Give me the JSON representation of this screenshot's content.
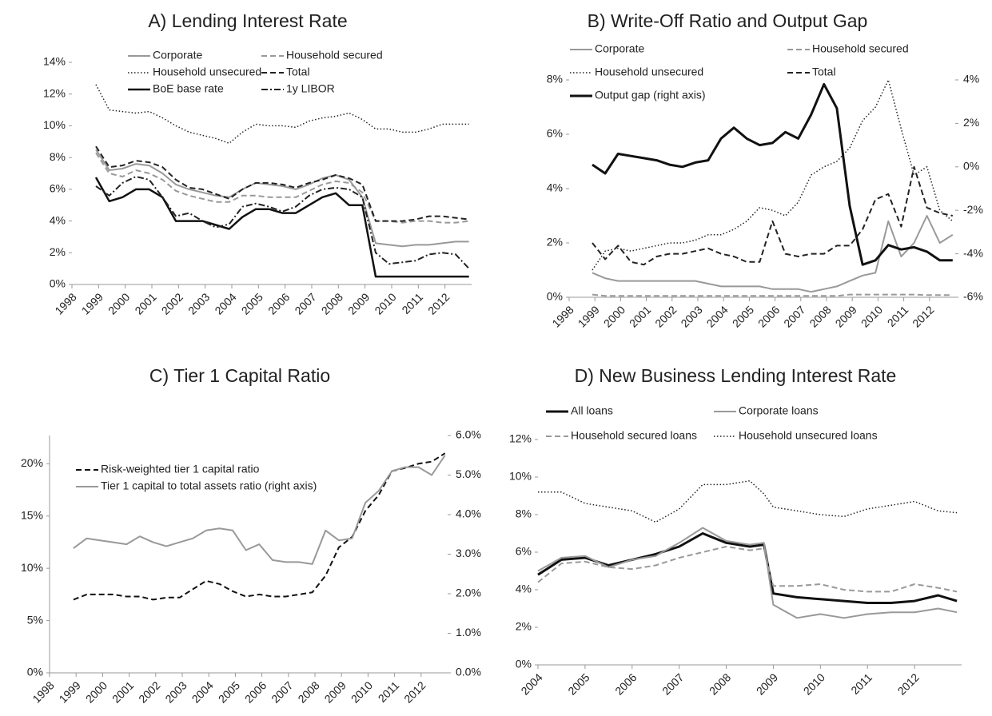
{
  "chart_data": [
    {
      "type": "line",
      "title": "A) Lending Interest Rate",
      "x": [
        1998.9,
        1999.4,
        1999.9,
        2000.4,
        2000.9,
        2001.4,
        2001.9,
        2002.4,
        2002.9,
        2003.4,
        2003.9,
        2004.4,
        2004.9,
        2005.4,
        2005.9,
        2006.4,
        2006.9,
        2007.4,
        2007.9,
        2008.4,
        2008.9,
        2009.4,
        2009.9,
        2010.4,
        2010.9,
        2011.4,
        2011.9,
        2012.4,
        2012.9
      ],
      "xlim": [
        1998,
        2013
      ],
      "xticks": [
        1998,
        1999,
        2000,
        2001,
        2002,
        2003,
        2004,
        2005,
        2006,
        2007,
        2008,
        2009,
        2010,
        2011,
        2012
      ],
      "ylim": [
        0,
        14
      ],
      "yticks": [
        {
          "value": 0,
          "label": "0%"
        },
        {
          "value": 2,
          "label": "2%"
        },
        {
          "value": 4,
          "label": "4%"
        },
        {
          "value": 6,
          "label": "6%"
        },
        {
          "value": 8,
          "label": "8%"
        },
        {
          "value": 10,
          "label": "10%"
        },
        {
          "value": 12,
          "label": "12%"
        },
        {
          "value": 14,
          "label": "14%"
        }
      ],
      "series": [
        {
          "name": "Corporate",
          "color": "#999999",
          "dash": "solid",
          "line_width": 2,
          "values": [
            8.5,
            7.2,
            7.3,
            7.6,
            7.5,
            7.0,
            6.3,
            6.0,
            5.8,
            5.6,
            5.5,
            6.0,
            6.4,
            6.3,
            6.2,
            6.0,
            6.3,
            6.7,
            6.9,
            6.6,
            5.5,
            2.6,
            2.5,
            2.4,
            2.5,
            2.5,
            2.6,
            2.7,
            2.7
          ]
        },
        {
          "name": "Household secured",
          "color": "#999999",
          "dash": "dashed",
          "line_width": 2,
          "values": [
            8.3,
            7.0,
            6.8,
            7.2,
            7.0,
            6.6,
            5.9,
            5.6,
            5.4,
            5.2,
            5.2,
            5.6,
            5.6,
            5.5,
            5.5,
            5.5,
            5.9,
            6.3,
            6.5,
            6.4,
            5.8,
            4.0,
            4.0,
            3.9,
            4.0,
            4.0,
            3.9,
            3.9,
            4.0
          ]
        },
        {
          "name": "Household unsecured",
          "color": "#222222",
          "dash": "dotted",
          "line_width": 1.5,
          "values": [
            12.6,
            11.0,
            10.9,
            10.8,
            10.9,
            10.5,
            10.0,
            9.6,
            9.4,
            9.2,
            8.9,
            9.6,
            10.1,
            10.0,
            10.0,
            9.9,
            10.3,
            10.5,
            10.6,
            10.8,
            10.4,
            9.8,
            9.8,
            9.6,
            9.6,
            9.8,
            10.1,
            10.1,
            10.1
          ]
        },
        {
          "name": "Total",
          "color": "#222222",
          "dash": "dashed",
          "line_width": 2,
          "values": [
            8.7,
            7.4,
            7.5,
            7.8,
            7.7,
            7.4,
            6.6,
            6.1,
            6.0,
            5.7,
            5.4,
            6.0,
            6.4,
            6.4,
            6.3,
            6.1,
            6.4,
            6.6,
            6.9,
            6.7,
            6.3,
            4.0,
            4.0,
            4.0,
            4.1,
            4.3,
            4.3,
            4.2,
            4.1
          ]
        },
        {
          "name": "BoE base rate",
          "color": "#111111",
          "dash": "solid",
          "line_width": 2.5,
          "values": [
            6.75,
            5.25,
            5.5,
            6.0,
            6.0,
            5.5,
            4.0,
            4.0,
            4.0,
            3.75,
            3.5,
            4.25,
            4.75,
            4.75,
            4.5,
            4.5,
            5.0,
            5.5,
            5.75,
            5.0,
            5.0,
            0.5,
            0.5,
            0.5,
            0.5,
            0.5,
            0.5,
            0.5,
            0.5
          ]
        },
        {
          "name": "1y LIBOR",
          "color": "#222222",
          "dash": "dashdot",
          "line_width": 2,
          "values": [
            6.2,
            5.6,
            6.4,
            6.8,
            6.6,
            5.5,
            4.3,
            4.5,
            4.0,
            3.6,
            3.8,
            4.9,
            5.1,
            4.9,
            4.6,
            4.9,
            5.6,
            6.0,
            6.1,
            6.0,
            5.5,
            2.0,
            1.3,
            1.4,
            1.5,
            1.9,
            2.0,
            1.9,
            1.0
          ]
        }
      ]
    },
    {
      "type": "line",
      "title": "B) Write-Off Ratio and Output Gap",
      "x": [
        1998.9,
        1999.4,
        1999.9,
        2000.4,
        2000.9,
        2001.4,
        2001.9,
        2002.4,
        2002.9,
        2003.4,
        2003.9,
        2004.4,
        2004.9,
        2005.4,
        2005.9,
        2006.4,
        2006.9,
        2007.4,
        2007.9,
        2008.4,
        2008.9,
        2009.4,
        2009.9,
        2010.4,
        2010.9,
        2011.4,
        2011.9,
        2012.4,
        2012.9
      ],
      "xlim": [
        1998,
        2013
      ],
      "xticks": [
        1998,
        1999,
        2000,
        2001,
        2002,
        2003,
        2004,
        2005,
        2006,
        2007,
        2008,
        2009,
        2010,
        2011,
        2012
      ],
      "ylim": [
        0,
        8
      ],
      "yticks": [
        {
          "value": 0,
          "label": "0%"
        },
        {
          "value": 2,
          "label": "2%"
        },
        {
          "value": 4,
          "label": "4%"
        },
        {
          "value": 6,
          "label": "6%"
        },
        {
          "value": 8,
          "label": "8%"
        }
      ],
      "y2lim": [
        -6,
        4
      ],
      "y2ticks": [
        {
          "value": -6,
          "label": "-6%"
        },
        {
          "value": -4,
          "label": "-4%"
        },
        {
          "value": -2,
          "label": "-2%"
        },
        {
          "value": 0,
          "label": "0%"
        },
        {
          "value": 2,
          "label": "2%"
        },
        {
          "value": 4,
          "label": "4%"
        }
      ],
      "series": [
        {
          "name": "Corporate",
          "color": "#999999",
          "dash": "solid",
          "line_width": 2,
          "values": [
            0.9,
            0.7,
            0.6,
            0.6,
            0.6,
            0.6,
            0.6,
            0.6,
            0.6,
            0.5,
            0.4,
            0.4,
            0.4,
            0.4,
            0.3,
            0.3,
            0.3,
            0.2,
            0.3,
            0.4,
            0.6,
            0.8,
            0.9,
            2.8,
            1.5,
            2.0,
            3.0,
            2.0,
            2.3
          ]
        },
        {
          "name": "Household secured",
          "color": "#999999",
          "dash": "dashed",
          "line_width": 2,
          "values": [
            0.1,
            0.05,
            0.05,
            0.05,
            0.05,
            0.05,
            0.05,
            0.05,
            0.05,
            0.05,
            0.05,
            0.05,
            0.05,
            0.05,
            0.05,
            0.05,
            0.05,
            0.05,
            0.05,
            0.05,
            0.1,
            0.1,
            0.1,
            0.1,
            0.1,
            0.1,
            0.08,
            0.08,
            0.08
          ]
        },
        {
          "name": "Household unsecured",
          "color": "#222222",
          "dash": "dotted",
          "line_width": 1.5,
          "values": [
            1.0,
            1.7,
            1.8,
            1.7,
            1.8,
            1.9,
            2.0,
            2.0,
            2.1,
            2.3,
            2.3,
            2.5,
            2.8,
            3.3,
            3.2,
            3.0,
            3.5,
            4.5,
            4.8,
            5.0,
            5.5,
            6.5,
            7.0,
            8.0,
            6.2,
            4.5,
            4.8,
            3.2,
            2.8
          ]
        },
        {
          "name": "Total",
          "color": "#222222",
          "dash": "dashed",
          "line_width": 2,
          "values": [
            2.0,
            1.4,
            1.9,
            1.3,
            1.2,
            1.5,
            1.6,
            1.6,
            1.7,
            1.8,
            1.6,
            1.5,
            1.3,
            1.3,
            2.8,
            1.6,
            1.5,
            1.6,
            1.6,
            1.9,
            1.9,
            2.5,
            3.6,
            3.8,
            2.6,
            4.8,
            3.3,
            3.1,
            3.0
          ]
        },
        {
          "name": "Output gap (right axis)",
          "color": "#111111",
          "dash": "solid",
          "line_width": 3,
          "axis": "y2",
          "values": [
            0.1,
            -0.3,
            0.6,
            0.5,
            0.4,
            0.3,
            0.1,
            0.0,
            0.2,
            0.3,
            1.3,
            1.8,
            1.3,
            1.0,
            1.1,
            1.6,
            1.3,
            2.4,
            3.8,
            2.7,
            -1.8,
            -4.5,
            -4.3,
            -3.6,
            -3.8,
            -3.7,
            -3.9,
            -4.3,
            -4.3
          ]
        }
      ]
    },
    {
      "type": "line",
      "title": "C) Tier 1 Capital Ratio",
      "x": [
        1998.9,
        1999.4,
        1999.9,
        2000.4,
        2000.9,
        2001.4,
        2001.9,
        2002.4,
        2002.9,
        2003.4,
        2003.9,
        2004.4,
        2004.9,
        2005.4,
        2005.9,
        2006.4,
        2006.9,
        2007.4,
        2007.9,
        2008.4,
        2008.9,
        2009.4,
        2009.9,
        2010.4,
        2010.9,
        2011.4,
        2011.9,
        2012.4,
        2012.9
      ],
      "xlim": [
        1998,
        2013
      ],
      "xticks": [
        1998,
        1999,
        2000,
        2001,
        2002,
        2003,
        2004,
        2005,
        2006,
        2007,
        2008,
        2009,
        2010,
        2011,
        2012
      ],
      "ylim": [
        0,
        22.7
      ],
      "yticks": [
        {
          "value": 0,
          "label": "0%"
        },
        {
          "value": 5,
          "label": "5%"
        },
        {
          "value": 10,
          "label": "10%"
        },
        {
          "value": 15,
          "label": "15%"
        },
        {
          "value": 20,
          "label": "20%"
        }
      ],
      "y2lim": [
        0,
        6
      ],
      "y2ticks": [
        {
          "value": 0,
          "label": "0.0%"
        },
        {
          "value": 1,
          "label": "1.0%"
        },
        {
          "value": 2,
          "label": "2.0%"
        },
        {
          "value": 3,
          "label": "3.0%"
        },
        {
          "value": 4,
          "label": "4.0%"
        },
        {
          "value": 5,
          "label": "5.0%"
        },
        {
          "value": 6,
          "label": "6.0%"
        }
      ],
      "series": [
        {
          "name": "Risk-weighted tier 1 capital ratio",
          "color": "#111111",
          "dash": "dashed",
          "line_width": 2,
          "values": [
            7.0,
            7.5,
            7.5,
            7.5,
            7.3,
            7.3,
            7.0,
            7.2,
            7.2,
            8.0,
            8.8,
            8.5,
            7.8,
            7.3,
            7.5,
            7.3,
            7.3,
            7.5,
            7.7,
            9.3,
            12.0,
            13.0,
            15.5,
            17.0,
            19.3,
            19.6,
            20.0,
            20.2,
            21.0
          ]
        },
        {
          "name": "Tier 1 capital to total assets ratio (right axis)",
          "color": "#999999",
          "dash": "solid",
          "line_width": 2,
          "axis": "y2",
          "values": [
            3.15,
            3.4,
            3.35,
            3.3,
            3.25,
            3.45,
            3.3,
            3.2,
            3.3,
            3.4,
            3.6,
            3.65,
            3.6,
            3.1,
            3.25,
            2.85,
            2.8,
            2.8,
            2.75,
            3.6,
            3.35,
            3.4,
            4.3,
            4.6,
            5.1,
            5.2,
            5.2,
            5.0,
            5.5
          ]
        }
      ]
    },
    {
      "type": "line",
      "title": "D) New Business Lending Interest Rate",
      "x": [
        2004.0,
        2004.5,
        2005.0,
        2005.5,
        2006.0,
        2006.5,
        2007.0,
        2007.5,
        2008.0,
        2008.5,
        2008.8,
        2009.0,
        2009.5,
        2010.0,
        2010.5,
        2011.0,
        2011.5,
        2012.0,
        2012.5,
        2012.9
      ],
      "xlim": [
        2004,
        2013
      ],
      "xticks": [
        2004,
        2005,
        2006,
        2007,
        2008,
        2009,
        2010,
        2011,
        2012
      ],
      "ylim": [
        0,
        12
      ],
      "yticks": [
        {
          "value": 0,
          "label": "0%"
        },
        {
          "value": 2,
          "label": "2%"
        },
        {
          "value": 4,
          "label": "4%"
        },
        {
          "value": 6,
          "label": "6%"
        },
        {
          "value": 8,
          "label": "8%"
        },
        {
          "value": 10,
          "label": "10%"
        },
        {
          "value": 12,
          "label": "12%"
        }
      ],
      "series": [
        {
          "name": "All loans",
          "color": "#111111",
          "dash": "solid",
          "line_width": 3,
          "values": [
            4.8,
            5.6,
            5.7,
            5.3,
            5.6,
            5.9,
            6.3,
            7.0,
            6.5,
            6.3,
            6.4,
            3.8,
            3.6,
            3.5,
            3.4,
            3.3,
            3.3,
            3.4,
            3.7,
            3.4
          ]
        },
        {
          "name": "Corporate loans",
          "color": "#999999",
          "dash": "solid",
          "line_width": 2,
          "values": [
            5.0,
            5.7,
            5.8,
            5.2,
            5.6,
            5.8,
            6.5,
            7.3,
            6.6,
            6.4,
            6.5,
            3.2,
            2.5,
            2.7,
            2.5,
            2.7,
            2.8,
            2.8,
            3.0,
            2.8
          ]
        },
        {
          "name": "Household secured loans",
          "color": "#999999",
          "dash": "dashed",
          "line_width": 2,
          "values": [
            4.4,
            5.4,
            5.5,
            5.2,
            5.1,
            5.3,
            5.7,
            6.0,
            6.3,
            6.1,
            6.2,
            4.2,
            4.2,
            4.3,
            4.0,
            3.9,
            3.9,
            4.3,
            4.1,
            3.9
          ]
        },
        {
          "name": "Household unsecured loans",
          "color": "#222222",
          "dash": "dotted",
          "line_width": 1.5,
          "values": [
            9.2,
            9.2,
            8.6,
            8.4,
            8.2,
            7.6,
            8.3,
            9.6,
            9.6,
            9.8,
            9.1,
            8.4,
            8.2,
            8.0,
            7.9,
            8.3,
            8.5,
            8.7,
            8.2,
            8.1
          ]
        }
      ]
    }
  ]
}
